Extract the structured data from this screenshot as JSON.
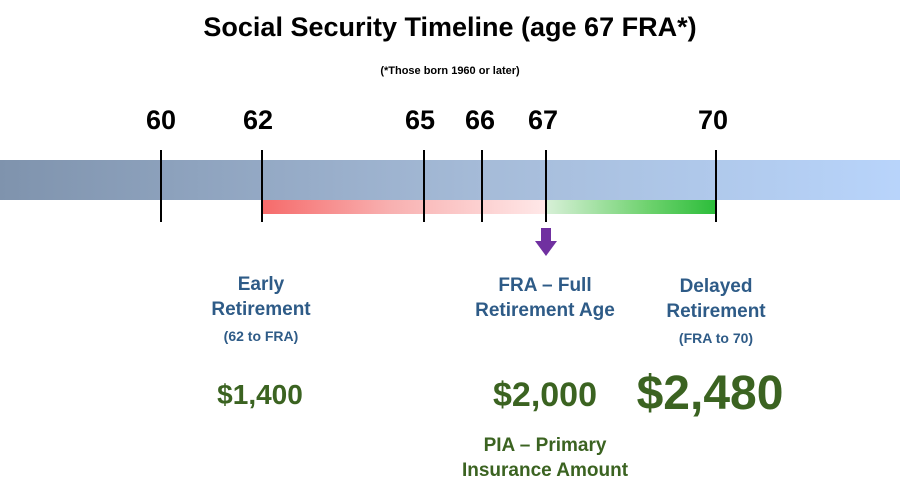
{
  "title": "Social Security Timeline (age 67 FRA*)",
  "subtitle": "(*Those born 1960 or later)",
  "ages": [
    "60",
    "62",
    "65",
    "66",
    "67",
    "70"
  ],
  "early": {
    "label_line1": "Early",
    "label_line2": "Retirement",
    "range": "(62 to FRA)",
    "amount": "$1,400"
  },
  "fra": {
    "label_line1": "FRA – Full",
    "label_line2": "Retirement Age",
    "amount": "$2,000",
    "pia_line1": "PIA – Primary",
    "pia_line2": "Insurance Amount"
  },
  "delayed": {
    "label_line1": "Delayed",
    "label_line2": "Retirement",
    "range": "(FRA to 70)",
    "amount": "$2,480"
  },
  "colors": {
    "label_blue": "#2e5b87",
    "amount_green": "#3b6321",
    "arrow_purple": "#7030a0",
    "reduction_red": "#f66a6a",
    "increase_green": "#2cbd3a"
  }
}
